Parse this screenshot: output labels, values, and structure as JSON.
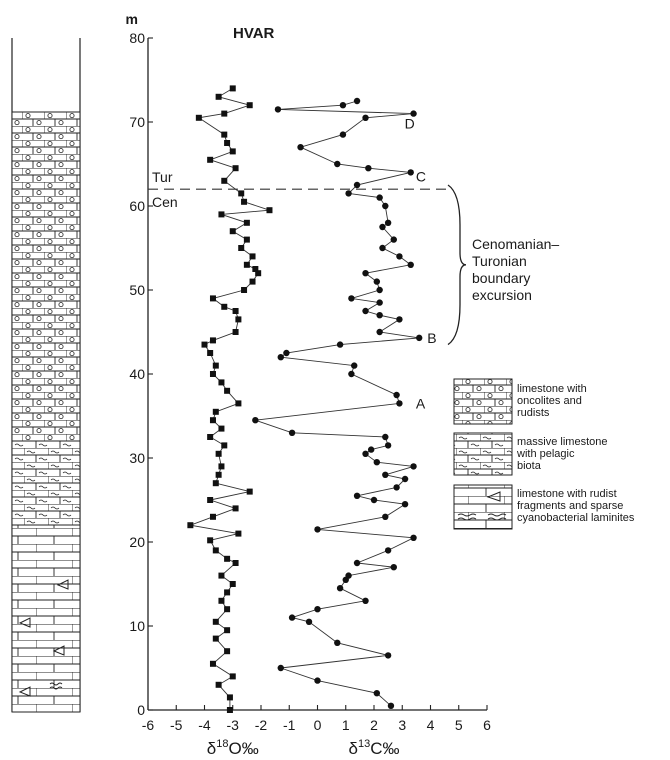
{
  "chart_data": {
    "type": "scatter",
    "title": "HVAR",
    "ylabel_unit": "m",
    "ylim": [
      0,
      80
    ],
    "yticks": [
      0,
      10,
      20,
      30,
      40,
      50,
      60,
      70,
      80
    ],
    "xlim": [
      -6,
      6
    ],
    "xticks": [
      -6,
      -5,
      -4,
      -3,
      -2,
      -1,
      0,
      1,
      2,
      3,
      4,
      5,
      6
    ],
    "xlabels": [
      "δ18O‰",
      "δ13C‰"
    ],
    "boundary": {
      "y": 62,
      "upper_label": "Tur",
      "lower_label": "Cen"
    },
    "excursion": {
      "label_lines": [
        "Cenomanian–",
        "Turonian",
        "boundary",
        "excursion"
      ],
      "y_range": [
        43.5,
        62.5
      ]
    },
    "point_labels": [
      {
        "text": "A",
        "x": 3.2,
        "y": 36.5
      },
      {
        "text": "B",
        "x": 3.6,
        "y": 44.3
      },
      {
        "text": "C",
        "x": 3.2,
        "y": 63.5
      },
      {
        "text": "D",
        "x": 2.8,
        "y": 69.8
      }
    ],
    "series": [
      {
        "name": "δ18O‰",
        "marker": "square",
        "points": [
          [
            -3.1,
            0
          ],
          [
            -3.1,
            1.5
          ],
          [
            -3.5,
            3
          ],
          [
            -3,
            4
          ],
          [
            -3.7,
            5.5
          ],
          [
            -3.2,
            7
          ],
          [
            -3.6,
            8.5
          ],
          [
            -3.2,
            9.5
          ],
          [
            -3.6,
            10.5
          ],
          [
            -3.2,
            12
          ],
          [
            -3.4,
            13
          ],
          [
            -3.2,
            14
          ],
          [
            -3,
            15
          ],
          [
            -3.4,
            16
          ],
          [
            -2.9,
            17.5
          ],
          [
            -3.2,
            18
          ],
          [
            -3.6,
            19
          ],
          [
            -3.8,
            20.2
          ],
          [
            -2.8,
            21
          ],
          [
            -4.5,
            22
          ],
          [
            -3.7,
            23
          ],
          [
            -2.9,
            24
          ],
          [
            -3.8,
            25
          ],
          [
            -2.4,
            26
          ],
          [
            -3.6,
            27
          ],
          [
            -3.5,
            28
          ],
          [
            -3.4,
            29
          ],
          [
            -3.5,
            30.5
          ],
          [
            -3.3,
            31.5
          ],
          [
            -3.8,
            32.5
          ],
          [
            -3.4,
            33.5
          ],
          [
            -3.7,
            34.5
          ],
          [
            -3.6,
            35.5
          ],
          [
            -2.8,
            36.5
          ],
          [
            -3.2,
            38
          ],
          [
            -3.4,
            39
          ],
          [
            -3.7,
            40
          ],
          [
            -3.6,
            41
          ],
          [
            -3.8,
            42.5
          ],
          [
            -4,
            43.5
          ],
          [
            -3.7,
            44
          ],
          [
            -2.9,
            45
          ],
          [
            -2.8,
            46.5
          ],
          [
            -2.9,
            47.5
          ],
          [
            -3.3,
            48
          ],
          [
            -3.7,
            49
          ],
          [
            -2.6,
            50
          ],
          [
            -2.3,
            51
          ],
          [
            -2.1,
            52
          ],
          [
            -2.2,
            52.5
          ],
          [
            -2.5,
            53
          ],
          [
            -2.3,
            54
          ],
          [
            -2.7,
            55
          ],
          [
            -2.5,
            56
          ],
          [
            -3,
            57
          ],
          [
            -2.5,
            58
          ],
          [
            -3.4,
            59
          ],
          [
            -1.7,
            59.5
          ],
          [
            -2.6,
            60.5
          ],
          [
            -2.7,
            61.5
          ],
          [
            -3.3,
            63
          ],
          [
            -2.9,
            64.5
          ],
          [
            -3.8,
            65.5
          ],
          [
            -3,
            66.5
          ],
          [
            -3.2,
            67.5
          ],
          [
            -3.3,
            68.5
          ],
          [
            -4.2,
            70.5
          ],
          [
            -3.3,
            71
          ],
          [
            -2.4,
            72
          ],
          [
            -3.5,
            73
          ],
          [
            -3,
            74
          ]
        ]
      },
      {
        "name": "δ13C‰",
        "marker": "circle",
        "points": [
          [
            2.6,
            0.5
          ],
          [
            2.1,
            2
          ],
          [
            0,
            3.5
          ],
          [
            -1.3,
            5
          ],
          [
            2.5,
            6.5
          ],
          [
            0.7,
            8
          ],
          [
            -0.3,
            10.5
          ],
          [
            -0.9,
            11
          ],
          [
            0,
            12
          ],
          [
            1.7,
            13
          ],
          [
            0.8,
            14.5
          ],
          [
            1,
            15.5
          ],
          [
            1.1,
            16
          ],
          [
            2.7,
            17
          ],
          [
            1.4,
            17.5
          ],
          [
            2.5,
            19
          ],
          [
            3.4,
            20.5
          ],
          [
            0,
            21.5
          ],
          [
            2.4,
            23
          ],
          [
            3.1,
            24.5
          ],
          [
            2,
            25
          ],
          [
            1.4,
            25.5
          ],
          [
            2.8,
            26.5
          ],
          [
            3.1,
            27.5
          ],
          [
            2.4,
            28
          ],
          [
            3.4,
            29
          ],
          [
            2.1,
            29.5
          ],
          [
            1.7,
            30.5
          ],
          [
            1.9,
            31
          ],
          [
            2.5,
            31.5
          ],
          [
            2.4,
            32.5
          ],
          [
            -0.9,
            33
          ],
          [
            -2.2,
            34.5
          ],
          [
            2.9,
            36.5
          ],
          [
            2.8,
            37.5
          ],
          [
            1.2,
            40
          ],
          [
            1.3,
            41
          ],
          [
            -1.3,
            42
          ],
          [
            -1.1,
            42.5
          ],
          [
            0.8,
            43.5
          ],
          [
            3.6,
            44.3
          ],
          [
            2.2,
            45
          ],
          [
            2.9,
            46.5
          ],
          [
            2.2,
            47
          ],
          [
            1.7,
            47.5
          ],
          [
            2.2,
            48.5
          ],
          [
            1.2,
            49
          ],
          [
            2.2,
            50
          ],
          [
            2.1,
            51
          ],
          [
            1.7,
            52
          ],
          [
            3.3,
            53
          ],
          [
            2.9,
            54
          ],
          [
            2.3,
            55
          ],
          [
            2.7,
            56
          ],
          [
            2.3,
            57.5
          ],
          [
            2.5,
            58
          ],
          [
            2.4,
            60
          ],
          [
            2.2,
            61
          ],
          [
            1.1,
            61.5
          ],
          [
            1.4,
            62.5
          ],
          [
            3.3,
            64
          ],
          [
            1.8,
            64.5
          ],
          [
            0.7,
            65
          ],
          [
            -0.6,
            67
          ],
          [
            0.9,
            68.5
          ],
          [
            1.7,
            70.5
          ],
          [
            3.4,
            71
          ],
          [
            -1.4,
            71.5
          ],
          [
            0.9,
            72
          ],
          [
            1.4,
            72.5
          ]
        ]
      }
    ]
  },
  "legend": [
    {
      "key": "oncolites",
      "lines": [
        "limestone with",
        "oncolites and",
        "rudists"
      ]
    },
    {
      "key": "pelagic",
      "lines": [
        "massive limestone",
        "with pelagic",
        "biota"
      ]
    },
    {
      "key": "rudist",
      "lines": [
        "limestone with rudist",
        "fragments and sparse",
        "cyanobacterial laminites"
      ]
    }
  ]
}
